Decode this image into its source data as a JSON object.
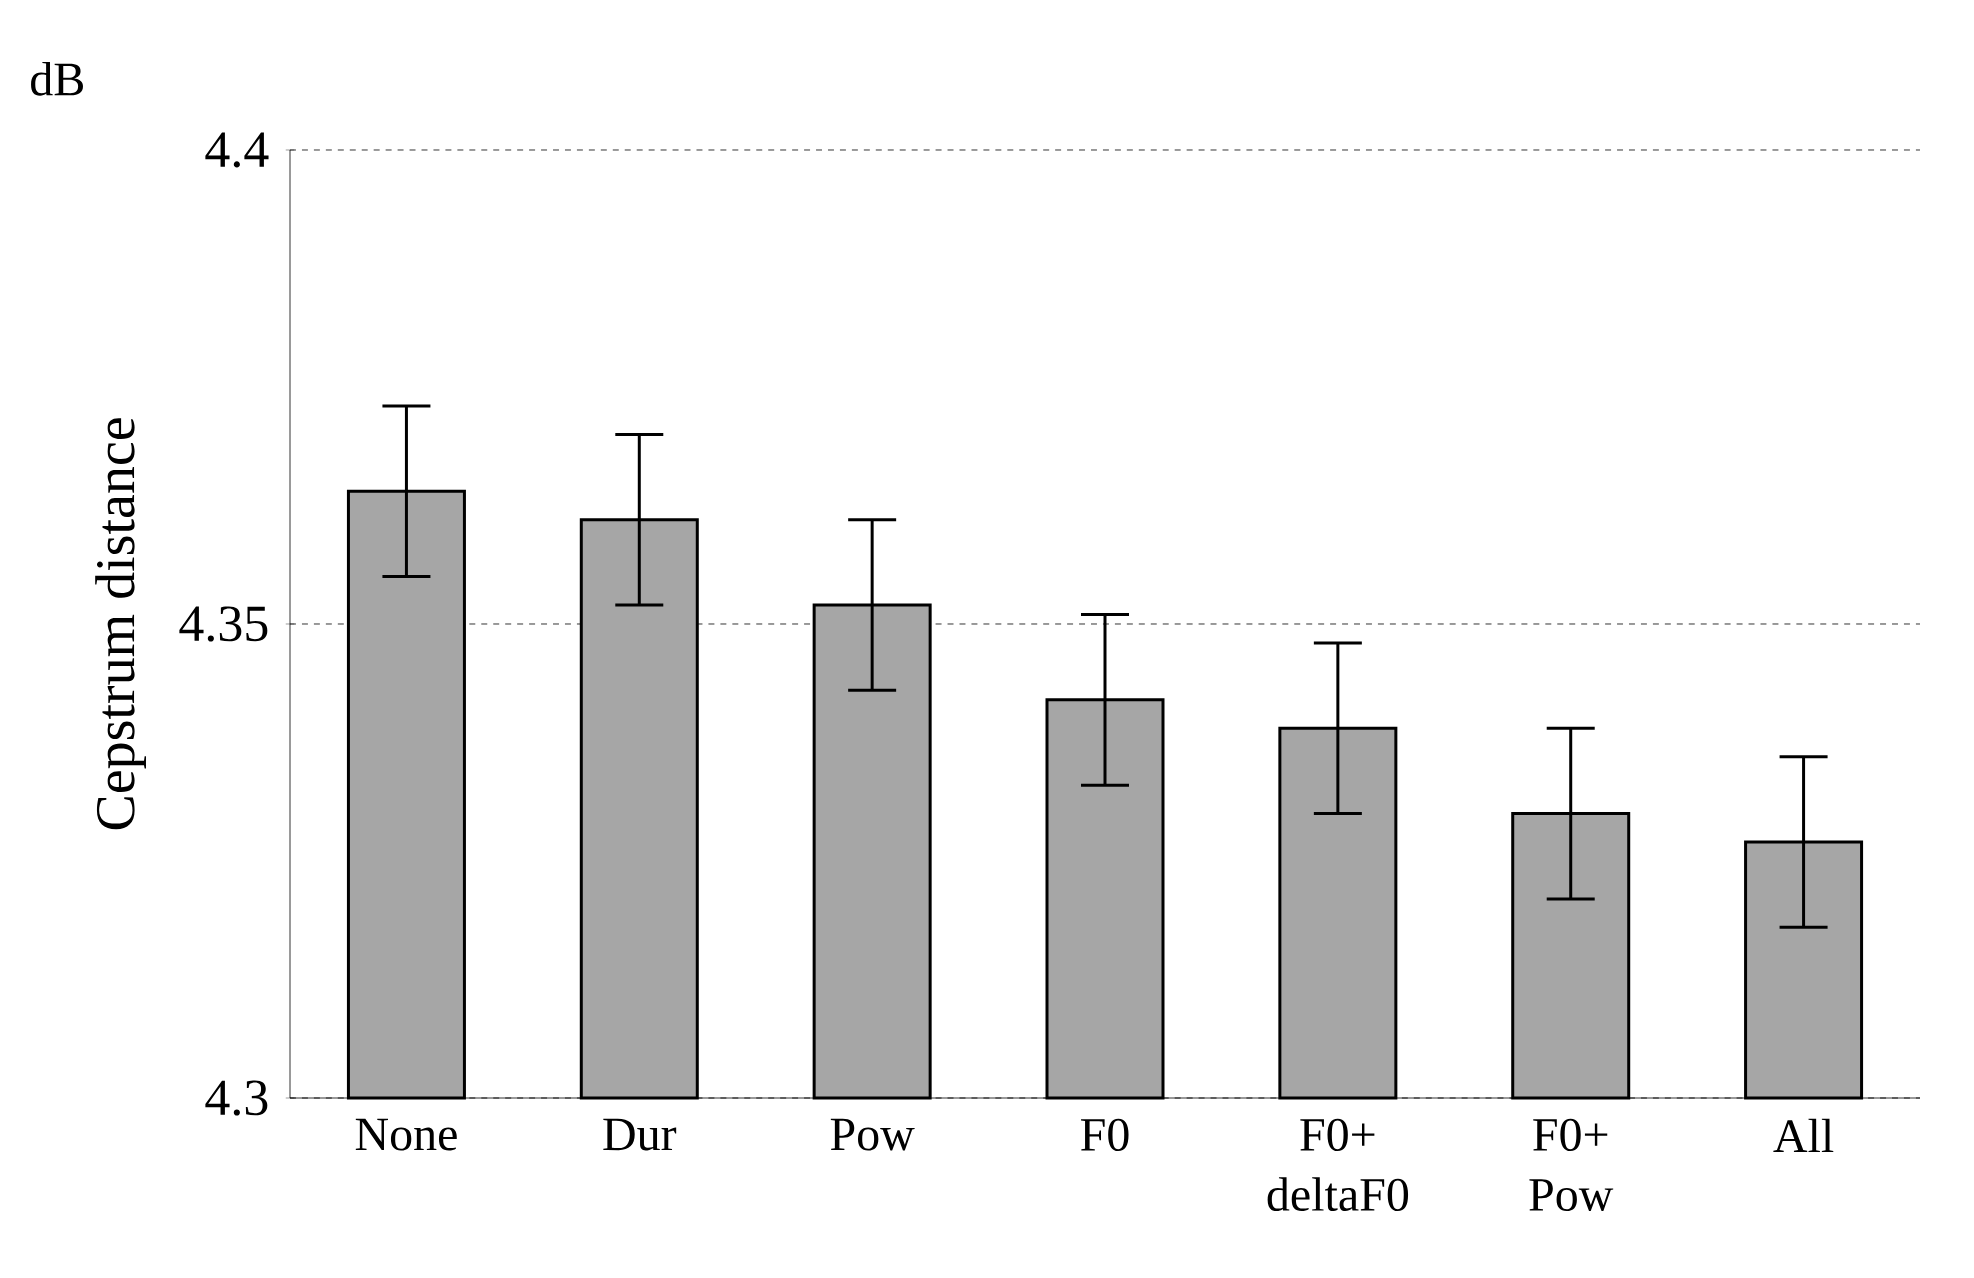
{
  "chart_data": {
    "type": "bar",
    "ylabel": "Cepstrum distance",
    "annotations": [
      "dB"
    ],
    "categories": [
      "None",
      "Dur",
      "Pow",
      "F0",
      "F0+ deltaF0",
      "F0+ Pow",
      "All"
    ],
    "values": [
      4.364,
      4.361,
      4.352,
      4.342,
      4.339,
      4.33,
      4.327
    ],
    "errors": [
      0.009,
      0.009,
      0.009,
      0.009,
      0.009,
      0.009,
      0.009
    ],
    "color": "#a6a6a6",
    "ylim": [
      4.3,
      4.4
    ],
    "yticks": [
      4.3,
      4.35,
      4.4
    ],
    "grid": "y"
  }
}
